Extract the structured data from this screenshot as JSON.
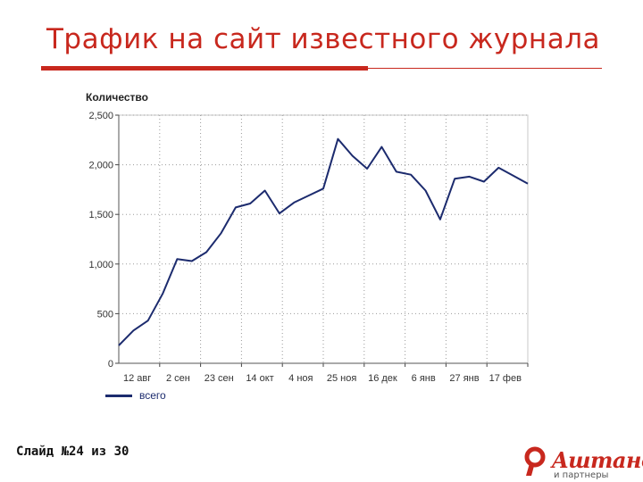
{
  "slide": {
    "title": "Трафик на сайт известного журнала",
    "footer": "Слайд №24 из 30",
    "brand": "Aштанов",
    "brand_sub": "и партнеры"
  },
  "colors": {
    "accent": "#c8281e",
    "series": "#1c2b6e"
  },
  "chart_data": {
    "type": "line",
    "title": "",
    "xlabel": "",
    "ylabel": "Количество",
    "ylim": [
      0,
      2500
    ],
    "yticks": [
      0,
      500,
      1000,
      1500,
      2000,
      2500
    ],
    "ytick_labels": [
      "0",
      "500",
      "1,000",
      "1,500",
      "2,000",
      "2,500"
    ],
    "xtick_labels": [
      "12 авг",
      "2 сен",
      "23 сен",
      "14 окт",
      "4 ноя",
      "25 ноя",
      "16 дек",
      "6 янв",
      "27 янв",
      "17 фев"
    ],
    "grid": true,
    "legend": "bottom-left",
    "series": [
      {
        "name": "всего",
        "values": [
          180,
          330,
          430,
          700,
          1050,
          1030,
          1120,
          1310,
          1570,
          1610,
          1740,
          1510,
          1620,
          1690,
          1760,
          2260,
          2090,
          1960,
          2180,
          1930,
          1900,
          1740,
          1450,
          1860,
          1880,
          1830,
          1970,
          1890,
          1810
        ]
      }
    ]
  }
}
